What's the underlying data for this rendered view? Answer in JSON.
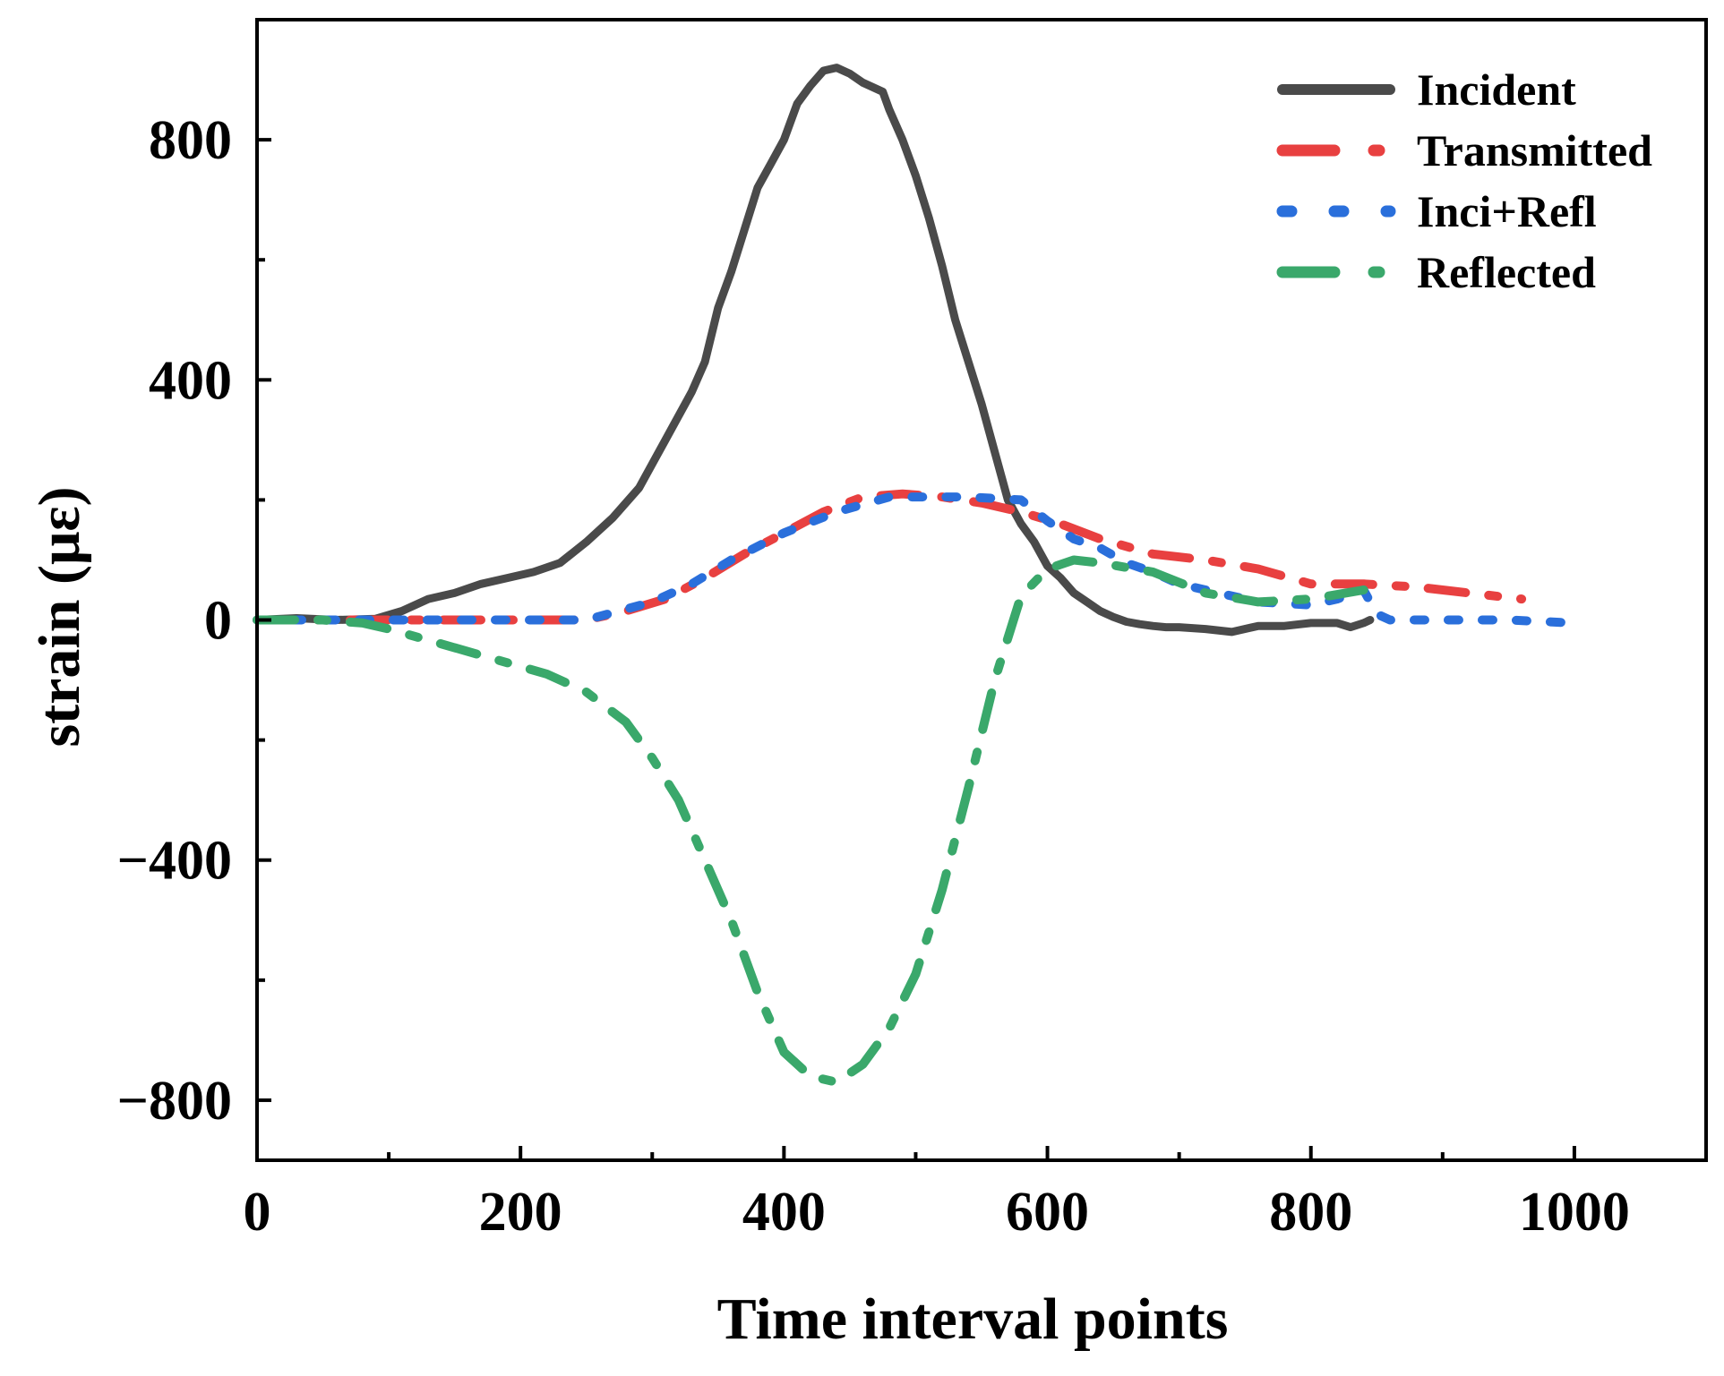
{
  "chart_data": {
    "type": "line",
    "title": "",
    "xlabel": "Time interval points",
    "ylabel": "strain (με)",
    "xlim": [
      0,
      1100
    ],
    "ylim": [
      -900,
      1000
    ],
    "xticks": [
      0,
      200,
      400,
      600,
      800,
      1000
    ],
    "xtick_labels": [
      "0",
      "200",
      "400",
      "600",
      "800",
      "1000"
    ],
    "yticks": [
      -800,
      -400,
      0,
      400,
      800
    ],
    "ytick_labels": [
      "−800",
      "−400",
      "0",
      "400",
      "800"
    ],
    "grid": false,
    "legend_position": "top-right",
    "series": [
      {
        "name": "Incident",
        "color": "#4a4a4a",
        "dash": "solid",
        "x": [
          0,
          30,
          60,
          90,
          110,
          130,
          150,
          170,
          190,
          210,
          230,
          250,
          270,
          290,
          310,
          330,
          340,
          350,
          360,
          370,
          380,
          390,
          400,
          410,
          420,
          430,
          440,
          450,
          460,
          475,
          480,
          490,
          500,
          510,
          520,
          530,
          540,
          550,
          560,
          570,
          580,
          590,
          600,
          610,
          620,
          630,
          640,
          650,
          660,
          670,
          680,
          690,
          700,
          720,
          740,
          760,
          780,
          800,
          820,
          830,
          840,
          845
        ],
        "y": [
          0,
          3,
          0,
          2,
          15,
          35,
          45,
          60,
          70,
          80,
          95,
          130,
          170,
          220,
          300,
          380,
          430,
          520,
          580,
          650,
          720,
          760,
          800,
          860,
          890,
          915,
          920,
          910,
          895,
          880,
          850,
          800,
          740,
          670,
          590,
          500,
          430,
          360,
          280,
          200,
          160,
          130,
          90,
          70,
          45,
          30,
          15,
          5,
          -3,
          -7,
          -10,
          -12,
          -12,
          -15,
          -20,
          -10,
          -10,
          -5,
          -5,
          -12,
          -5,
          0
        ]
      },
      {
        "name": "Transmitted",
        "color": "#e84040",
        "dash": "dash-dot",
        "x": [
          0,
          50,
          100,
          150,
          200,
          250,
          280,
          310,
          340,
          370,
          400,
          430,
          460,
          490,
          520,
          550,
          580,
          610,
          640,
          680,
          720,
          760,
          800,
          840,
          880,
          920,
          960
        ],
        "y": [
          0,
          0,
          0,
          0,
          0,
          0,
          15,
          35,
          70,
          110,
          145,
          180,
          205,
          210,
          205,
          195,
          180,
          160,
          135,
          110,
          100,
          85,
          60,
          60,
          55,
          45,
          35
        ]
      },
      {
        "name": "Inci+Refl",
        "color": "#2a6fdb",
        "dash": "dotted",
        "x": [
          0,
          50,
          100,
          150,
          200,
          250,
          300,
          330,
          360,
          400,
          440,
          480,
          500,
          540,
          580,
          600,
          620,
          640,
          660,
          680,
          700,
          720,
          760,
          800,
          820,
          840,
          850,
          860,
          900,
          950,
          1000
        ],
        "y": [
          0,
          0,
          0,
          0,
          0,
          0,
          30,
          60,
          100,
          145,
          180,
          205,
          205,
          205,
          200,
          165,
          135,
          120,
          95,
          80,
          60,
          50,
          30,
          25,
          35,
          50,
          10,
          0,
          0,
          0,
          -5
        ]
      },
      {
        "name": "Reflected",
        "color": "#3aa86b",
        "dash": "dash-dot",
        "x": [
          0,
          50,
          80,
          100,
          140,
          180,
          220,
          250,
          280,
          300,
          320,
          340,
          360,
          380,
          400,
          420,
          440,
          460,
          480,
          500,
          520,
          540,
          560,
          580,
          600,
          620,
          640,
          680,
          720,
          760,
          800,
          840
        ],
        "y": [
          0,
          0,
          -5,
          -15,
          -40,
          -65,
          -90,
          -120,
          -170,
          -230,
          -300,
          -400,
          -500,
          -620,
          -720,
          -760,
          -770,
          -740,
          -680,
          -590,
          -450,
          -280,
          -100,
          40,
          85,
          100,
          95,
          80,
          45,
          30,
          35,
          50
        ]
      }
    ]
  }
}
